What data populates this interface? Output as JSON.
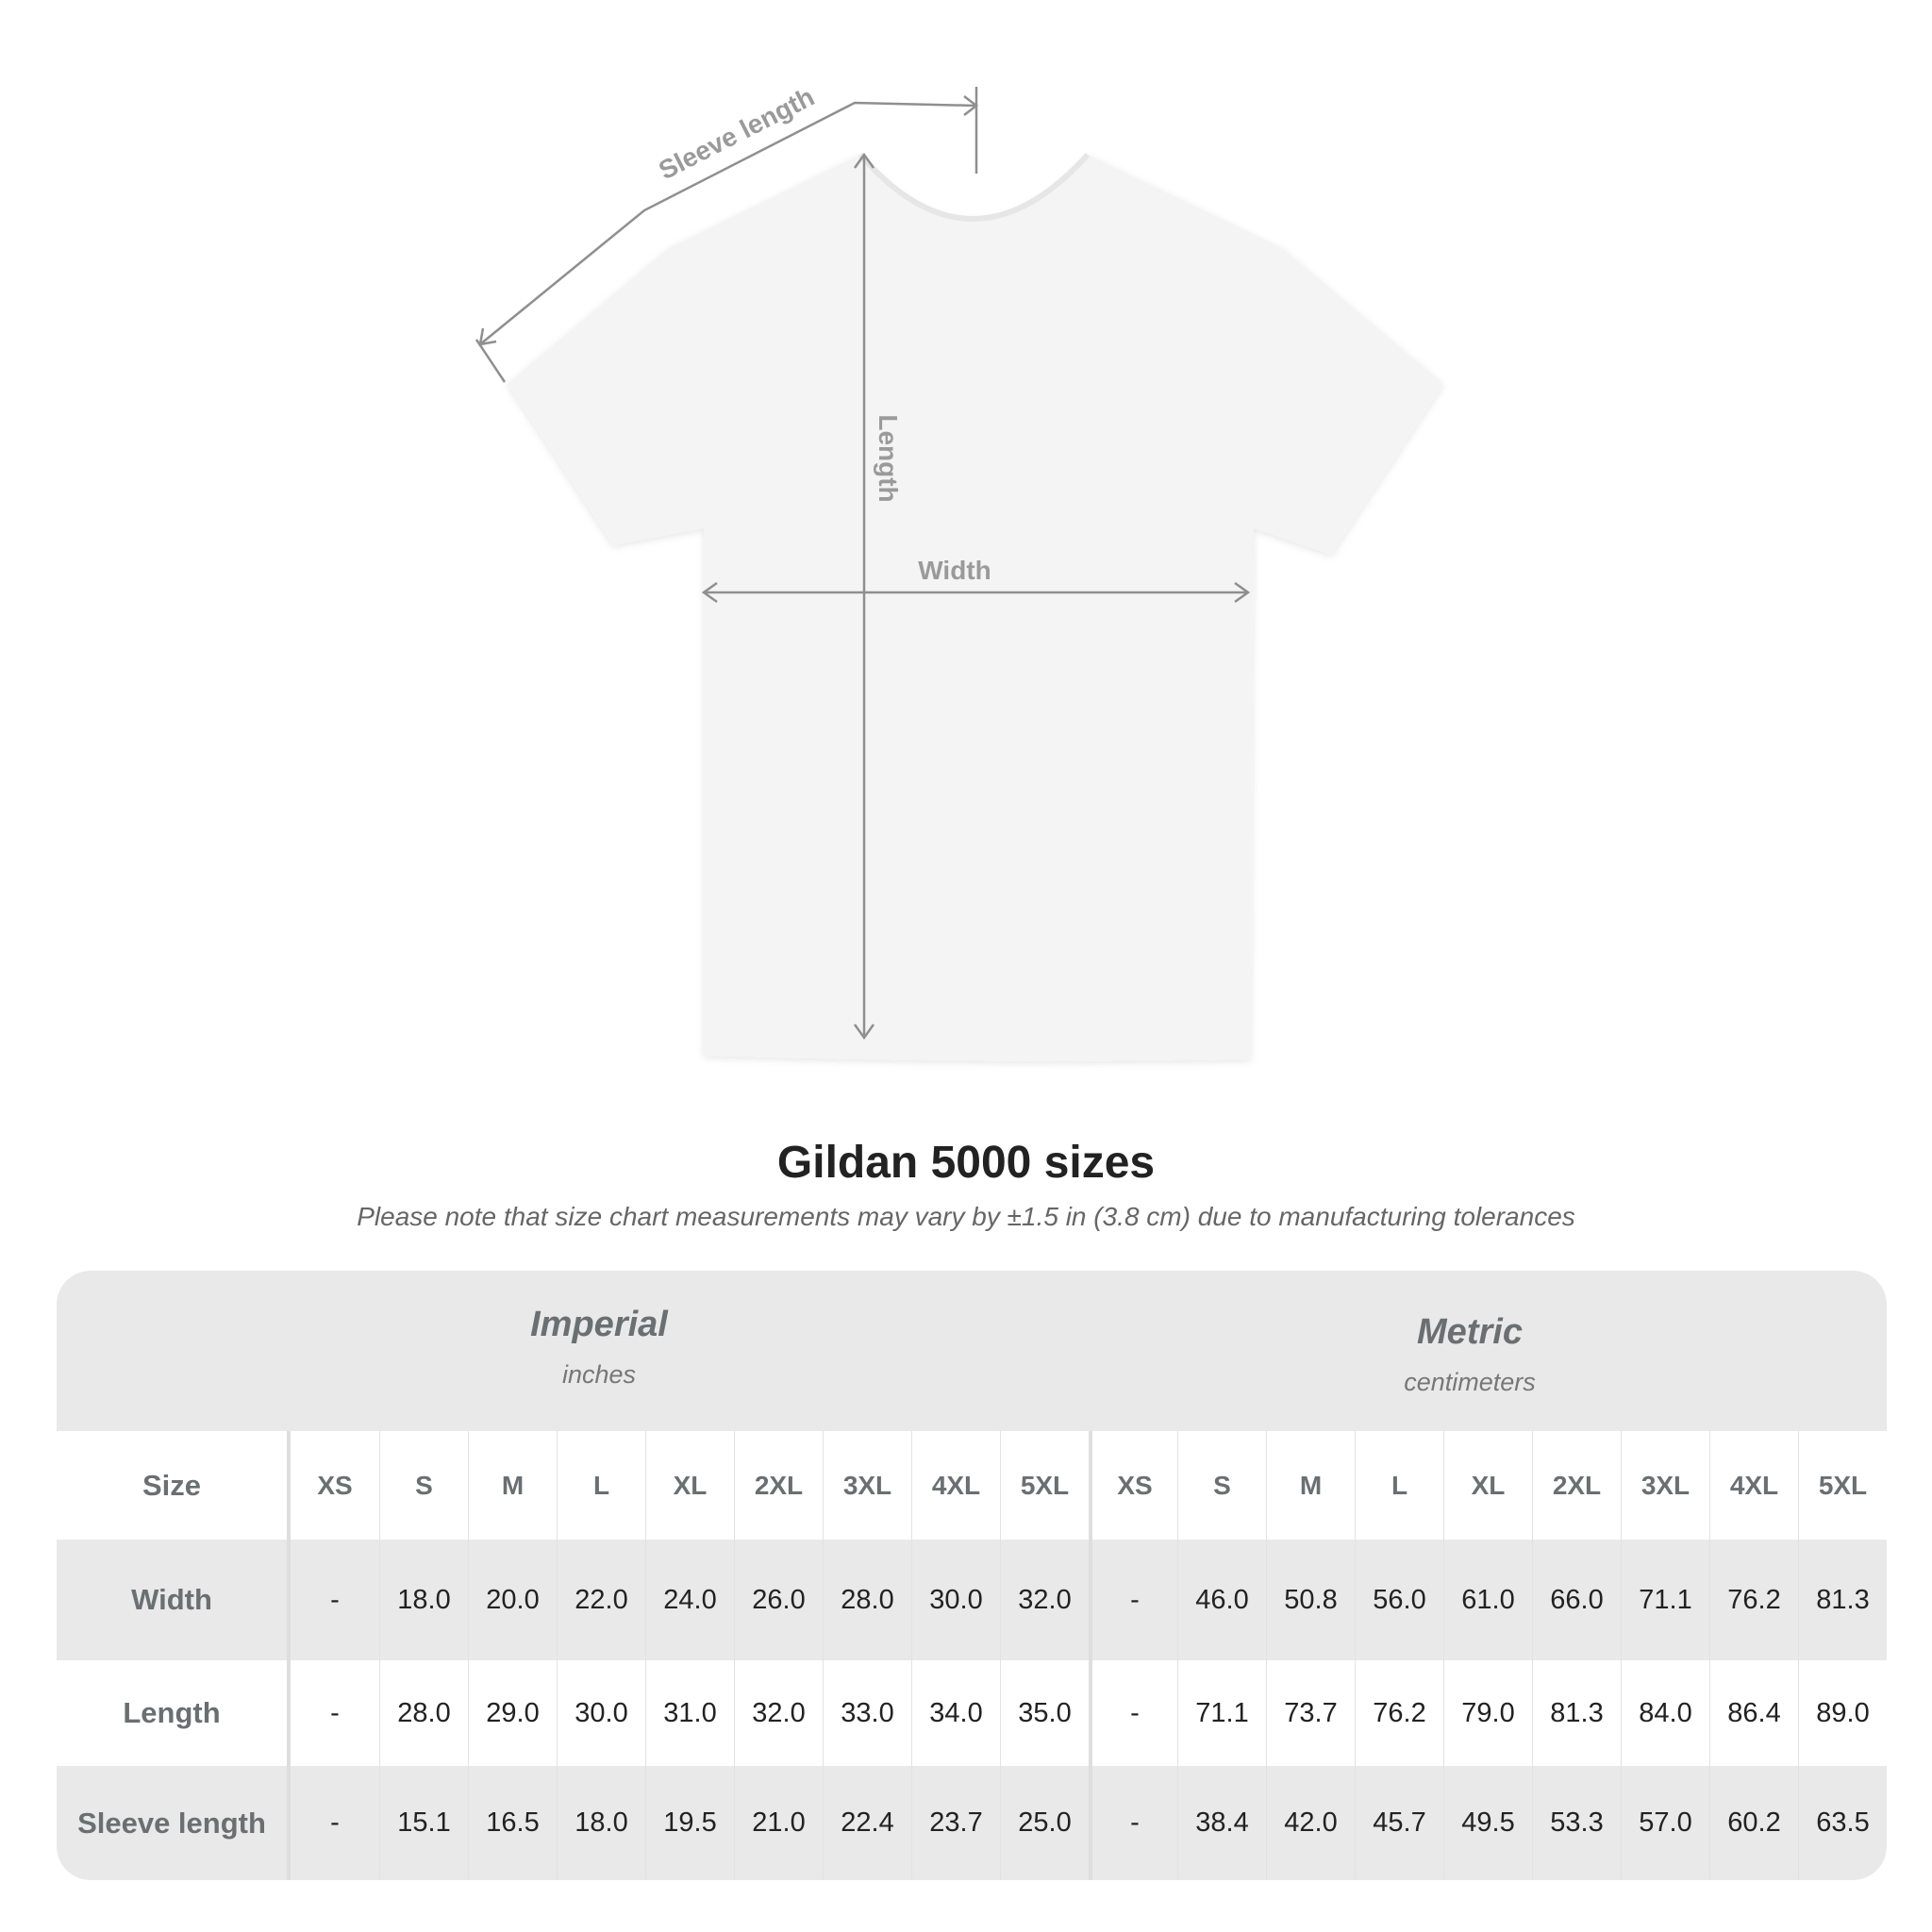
{
  "diagram": {
    "labels": {
      "sleeve": "Sleeve length",
      "length": "Length",
      "width": "Width"
    },
    "colors": {
      "shirt": "#f4f4f4",
      "measure_line": "#8f8f8f",
      "label": "#9a9a9a"
    }
  },
  "title": "Gildan 5000 sizes",
  "note": "Please note that size chart measurements may vary by ±1.5 in (3.8 cm) due to manufacturing tolerances",
  "table": {
    "imperial": {
      "name": "Imperial",
      "unit": "inches"
    },
    "metric": {
      "name": "Metric",
      "unit": "centimeters"
    },
    "size_label": "Size",
    "sizes": [
      "XS",
      "S",
      "M",
      "L",
      "XL",
      "2XL",
      "3XL",
      "4XL",
      "5XL"
    ],
    "rows": [
      {
        "label": "Width",
        "imperial": [
          "-",
          "18.0",
          "20.0",
          "22.0",
          "24.0",
          "26.0",
          "28.0",
          "30.0",
          "32.0"
        ],
        "metric": [
          "-",
          "46.0",
          "50.8",
          "56.0",
          "61.0",
          "66.0",
          "71.1",
          "76.2",
          "81.3"
        ]
      },
      {
        "label": "Length",
        "imperial": [
          "-",
          "28.0",
          "29.0",
          "30.0",
          "31.0",
          "32.0",
          "33.0",
          "34.0",
          "35.0"
        ],
        "metric": [
          "-",
          "71.1",
          "73.7",
          "76.2",
          "79.0",
          "81.3",
          "84.0",
          "86.4",
          "89.0"
        ]
      },
      {
        "label": "Sleeve length",
        "imperial": [
          "-",
          "15.1",
          "16.5",
          "18.0",
          "19.5",
          "21.0",
          "22.4",
          "23.7",
          "25.0"
        ],
        "metric": [
          "-",
          "38.4",
          "42.0",
          "45.7",
          "49.5",
          "53.3",
          "57.0",
          "60.2",
          "63.5"
        ]
      }
    ]
  }
}
